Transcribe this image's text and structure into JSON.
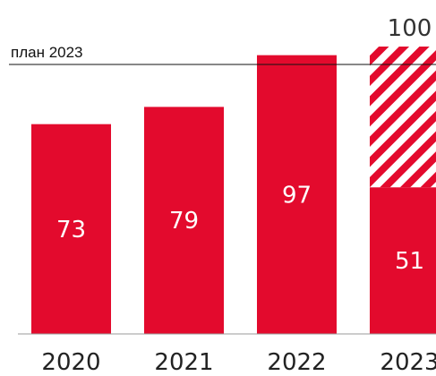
{
  "chart_data": {
    "type": "bar",
    "title": "",
    "xlabel": "",
    "ylabel": "",
    "categories": [
      "2020",
      "2021",
      "2022",
      "2023"
    ],
    "series": [
      {
        "values": [
          73,
          79,
          97,
          51
        ]
      }
    ],
    "plan": {
      "category": "2023",
      "value": 100
    },
    "plan_line": {
      "label": "план 2023",
      "value": 100
    },
    "data_labels": [
      "73",
      "79",
      "97",
      "51"
    ],
    "plan_value_label": "100",
    "ylim": [
      0,
      100
    ],
    "grid": false,
    "legend": "none",
    "colors": {
      "bar": "#e30a2d",
      "hatch_stripe": "#e30a2d",
      "hatch_bg": "#ffffff",
      "label_on_bar": "#ffffff",
      "label_above": "#333333",
      "axis": "#999999",
      "plan_line": "#111111"
    }
  }
}
